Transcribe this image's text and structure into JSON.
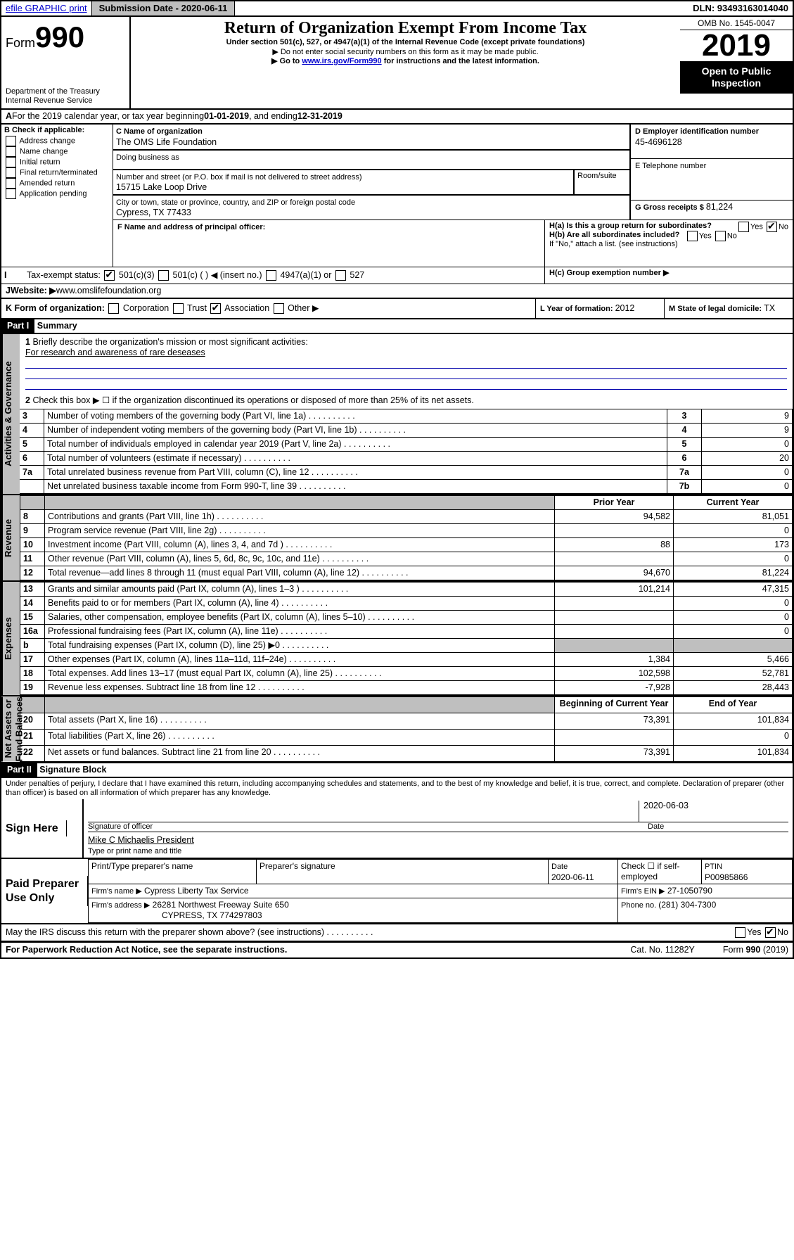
{
  "topbar": {
    "efile": "efile GRAPHIC print",
    "submission_label": "Submission Date - 2020-06-11",
    "dln": "DLN: 93493163014040"
  },
  "header": {
    "form_prefix": "Form",
    "form_no": "990",
    "dept": "Department of the Treasury\nInternal Revenue Service",
    "title": "Return of Organization Exempt From Income Tax",
    "sub1": "Under section 501(c), 527, or 4947(a)(1) of the Internal Revenue Code (except private foundations)",
    "sub2": "Do not enter social security numbers on this form as it may be made public.",
    "sub3": "Go to ",
    "sub3_link": "www.irs.gov/Form990",
    "sub3_tail": " for instructions and the latest information.",
    "omb": "OMB No. 1545-0047",
    "year": "2019",
    "open": "Open to Public\nInspection"
  },
  "lineA": {
    "text": "For the 2019 calendar year, or tax year beginning ",
    "begin": "01-01-2019",
    "mid": " , and ending ",
    "end": "12-31-2019"
  },
  "boxB": {
    "label": "B Check if applicable:",
    "opts": [
      "Address change",
      "Name change",
      "Initial return",
      "Final return/terminated",
      "Amended return",
      "Application pending"
    ]
  },
  "boxC": {
    "name_label": "C Name of organization",
    "name": "The OMS Life Foundation",
    "dba_label": "Doing business as",
    "addr_label": "Number and street (or P.O. box if mail is not delivered to street address)",
    "room_label": "Room/suite",
    "addr": "15715 Lake Loop Drive",
    "city_label": "City or town, state or province, country, and ZIP or foreign postal code",
    "city": "Cypress, TX  77433"
  },
  "boxD": {
    "label": "D Employer identification number",
    "val": "45-4696128"
  },
  "boxE": {
    "label": "E Telephone number"
  },
  "boxG": {
    "label": "G Gross receipts $ ",
    "val": "81,224"
  },
  "boxF": {
    "label": "F  Name and address of principal officer:"
  },
  "boxH": {
    "a": "H(a)  Is this a group return for subordinates?",
    "a_no": true,
    "b": "H(b)  Are all subordinates included?",
    "b_note": "If \"No,\" attach a list. (see instructions)",
    "c": "H(c)  Group exemption number ▶"
  },
  "boxI": {
    "label": "Tax-exempt status:",
    "opts": [
      "501(c)(3)",
      "501(c) (  ) ◀ (insert no.)",
      "4947(a)(1) or",
      "527"
    ],
    "checked": 0
  },
  "boxJ": {
    "label": "Website: ▶",
    "val": "www.omslifefoundation.org"
  },
  "boxK": {
    "label": "K Form of organization:",
    "opts": [
      "Corporation",
      "Trust",
      "Association",
      "Other ▶"
    ],
    "checked": 2
  },
  "boxL": {
    "label": "L Year of formation: ",
    "val": "2012"
  },
  "boxM": {
    "label": "M State of legal domicile: ",
    "val": "TX"
  },
  "part1": {
    "hdr": "Part I",
    "title": "Summary"
  },
  "summary": {
    "l1": {
      "label": "Briefly describe the organization's mission or most significant activities:",
      "text": "For research and awareness of rare deseases"
    },
    "l2": "Check this box ▶ ☐  if the organization discontinued its operations or disposed of more than 25% of its net assets.",
    "rows": [
      {
        "n": "3",
        "t": "Number of voting members of the governing body (Part VI, line 1a)",
        "c": "3",
        "v": "9"
      },
      {
        "n": "4",
        "t": "Number of independent voting members of the governing body (Part VI, line 1b)",
        "c": "4",
        "v": "9"
      },
      {
        "n": "5",
        "t": "Total number of individuals employed in calendar year 2019 (Part V, line 2a)",
        "c": "5",
        "v": "0"
      },
      {
        "n": "6",
        "t": "Total number of volunteers (estimate if necessary)",
        "c": "6",
        "v": "20"
      },
      {
        "n": "7a",
        "t": "Total unrelated business revenue from Part VIII, column (C), line 12",
        "c": "7a",
        "v": "0"
      },
      {
        "n": "",
        "t": "Net unrelated business taxable income from Form 990-T, line 39",
        "c": "7b",
        "v": "0"
      }
    ]
  },
  "revexp": {
    "hdrs": [
      "",
      "",
      "Prior Year",
      "Current Year"
    ],
    "groups": [
      {
        "label": "Revenue",
        "rows": [
          {
            "n": "8",
            "t": "Contributions and grants (Part VIII, line 1h)",
            "p": "94,582",
            "c": "81,051"
          },
          {
            "n": "9",
            "t": "Program service revenue (Part VIII, line 2g)",
            "p": "",
            "c": "0"
          },
          {
            "n": "10",
            "t": "Investment income (Part VIII, column (A), lines 3, 4, and 7d )",
            "p": "88",
            "c": "173"
          },
          {
            "n": "11",
            "t": "Other revenue (Part VIII, column (A), lines 5, 6d, 8c, 9c, 10c, and 11e)",
            "p": "",
            "c": "0"
          },
          {
            "n": "12",
            "t": "Total revenue—add lines 8 through 11 (must equal Part VIII, column (A), line 12)",
            "p": "94,670",
            "c": "81,224"
          }
        ]
      },
      {
        "label": "Expenses",
        "rows": [
          {
            "n": "13",
            "t": "Grants and similar amounts paid (Part IX, column (A), lines 1–3 )",
            "p": "101,214",
            "c": "47,315"
          },
          {
            "n": "14",
            "t": "Benefits paid to or for members (Part IX, column (A), line 4)",
            "p": "",
            "c": "0"
          },
          {
            "n": "15",
            "t": "Salaries, other compensation, employee benefits (Part IX, column (A), lines 5–10)",
            "p": "",
            "c": "0"
          },
          {
            "n": "16a",
            "t": "Professional fundraising fees (Part IX, column (A), line 11e)",
            "p": "",
            "c": "0"
          },
          {
            "n": "b",
            "t": "Total fundraising expenses (Part IX, column (D), line 25) ▶0",
            "p": "grey",
            "c": "grey"
          },
          {
            "n": "17",
            "t": "Other expenses (Part IX, column (A), lines 11a–11d, 11f–24e)",
            "p": "1,384",
            "c": "5,466"
          },
          {
            "n": "18",
            "t": "Total expenses. Add lines 13–17 (must equal Part IX, column (A), line 25)",
            "p": "102,598",
            "c": "52,781"
          },
          {
            "n": "19",
            "t": "Revenue less expenses. Subtract line 18 from line 12",
            "p": "-7,928",
            "c": "28,443"
          }
        ]
      },
      {
        "label": "Net Assets or\nFund Balances",
        "hdr2": [
          "Beginning of Current Year",
          "End of Year"
        ],
        "rows": [
          {
            "n": "20",
            "t": "Total assets (Part X, line 16)",
            "p": "73,391",
            "c": "101,834"
          },
          {
            "n": "21",
            "t": "Total liabilities (Part X, line 26)",
            "p": "",
            "c": "0"
          },
          {
            "n": "22",
            "t": "Net assets or fund balances. Subtract line 21 from line 20",
            "p": "73,391",
            "c": "101,834"
          }
        ]
      }
    ]
  },
  "part2": {
    "hdr": "Part II",
    "title": "Signature Block",
    "perjury": "Under penalties of perjury, I declare that I have examined this return, including accompanying schedules and statements, and to the best of my knowledge and belief, it is true, correct, and complete. Declaration of preparer (other than officer) is based on all information of which preparer has any knowledge."
  },
  "sign": {
    "label": "Sign Here",
    "sig_label": "Signature of officer",
    "date_label": "Date",
    "date": "2020-06-03",
    "name": "Mike C Michaelis  President",
    "name_label": "Type or print name and title"
  },
  "prep": {
    "label": "Paid Preparer Use Only",
    "cols": [
      "Print/Type preparer's name",
      "Preparer's signature",
      "Date",
      "Check ☐ if self-employed",
      "PTIN"
    ],
    "date": "2020-06-11",
    "ptin": "P00985866",
    "firm_label": "Firm's name  ▶",
    "firm": "Cypress Liberty Tax Service",
    "ein_label": "Firm's EIN ▶",
    "ein": "27-1050790",
    "addr_label": "Firm's address ▶",
    "addr": "26281 Northwest Freeway Suite 650",
    "addr2": "CYPRESS, TX  774297803",
    "phone_label": "Phone no. ",
    "phone": "(281) 304-7300"
  },
  "footer": {
    "discuss": "May the IRS discuss this return with the preparer shown above? (see instructions)",
    "discuss_no": true,
    "pra": "For Paperwork Reduction Act Notice, see the separate instructions.",
    "cat": "Cat. No. 11282Y",
    "form": "Form 990 (2019)"
  },
  "yes": "Yes",
  "no": "No"
}
